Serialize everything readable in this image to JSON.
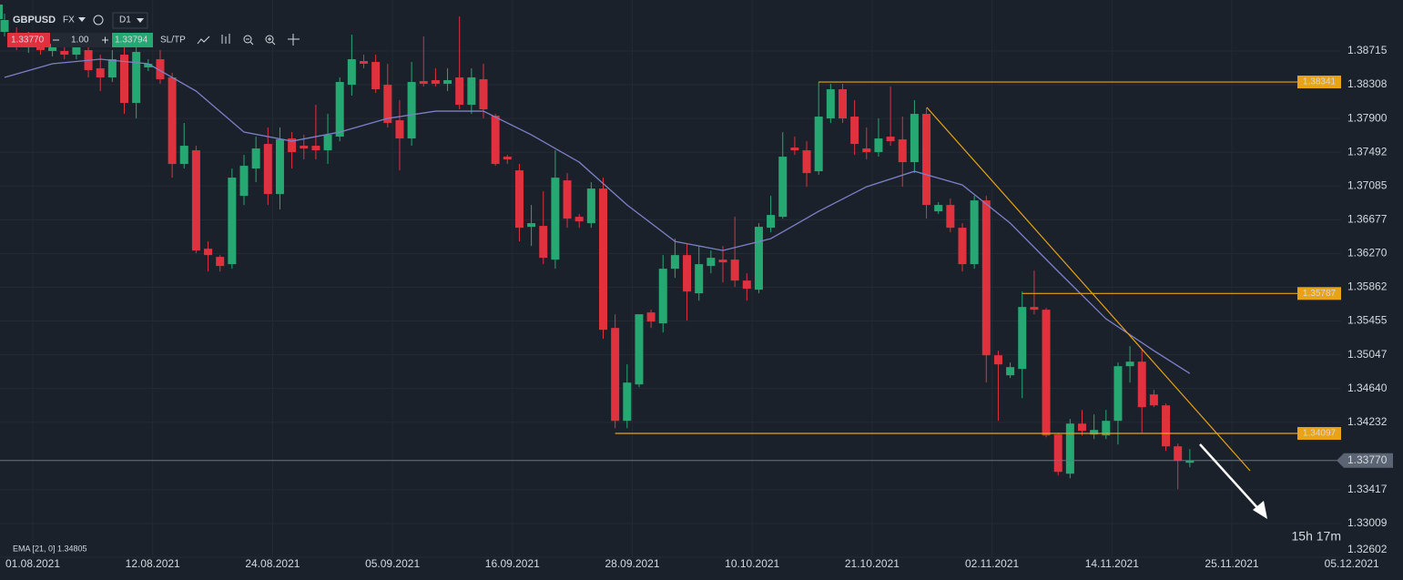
{
  "chart_data": {
    "type": "candlestick",
    "symbol": "GBPUSD",
    "market": "FX",
    "timeframe": "D1",
    "bid": {
      "value": 1.3377,
      "label": "1.33770"
    },
    "lot": "1.00",
    "ask": 1.33794,
    "sltp": "SL/TP",
    "up_color": "#26a872",
    "down_color": "#e0313e",
    "ohlc": [
      [
        1.38946,
        1.39166,
        1.38891,
        1.39089
      ],
      [
        1.38913,
        1.39001,
        1.38726,
        1.38781
      ],
      [
        1.38759,
        1.38946,
        1.38693,
        1.38869
      ],
      [
        1.38836,
        1.38913,
        1.38671,
        1.38726
      ],
      [
        1.38715,
        1.38891,
        1.38649,
        1.38803
      ],
      [
        1.38715,
        1.38781,
        1.38616,
        1.38671
      ],
      [
        1.38671,
        1.38836,
        1.38616,
        1.38759
      ],
      [
        1.38726,
        1.38781,
        1.38396,
        1.38484
      ],
      [
        1.38506,
        1.38671,
        1.38231,
        1.38396
      ],
      [
        1.38396,
        1.38726,
        1.38341,
        1.38616
      ],
      [
        1.38671,
        1.38781,
        1.37956,
        1.38088
      ],
      [
        1.38088,
        1.38781,
        1.37901,
        1.38704
      ],
      [
        1.38517,
        1.38616,
        1.38473,
        1.38561
      ],
      [
        1.38616,
        1.38726,
        1.38319,
        1.38374
      ],
      [
        1.38396,
        1.38451,
        1.37186,
        1.37351
      ],
      [
        1.37351,
        1.37846,
        1.37296,
        1.37571
      ],
      [
        1.37516,
        1.37571,
        1.36273,
        1.36306
      ],
      [
        1.36328,
        1.36416,
        1.36053,
        1.36251
      ],
      [
        1.36229,
        1.36251,
        1.36053,
        1.36119
      ],
      [
        1.36141,
        1.37296,
        1.36086,
        1.37186
      ],
      [
        1.36966,
        1.37461,
        1.36856,
        1.37329
      ],
      [
        1.37296,
        1.37681,
        1.37131,
        1.37538
      ],
      [
        1.37593,
        1.37791,
        1.36856,
        1.36988
      ],
      [
        1.36988,
        1.37791,
        1.36801,
        1.37648
      ],
      [
        1.37659,
        1.37736,
        1.37296,
        1.37494
      ],
      [
        1.37571,
        1.37703,
        1.37406,
        1.37538
      ],
      [
        1.37571,
        1.38066,
        1.37406,
        1.37516
      ],
      [
        1.37516,
        1.37956,
        1.37351,
        1.37703
      ],
      [
        1.37681,
        1.38396,
        1.37626,
        1.38341
      ],
      [
        1.38308,
        1.38913,
        1.38176,
        1.38616
      ],
      [
        1.38594,
        1.38671,
        1.38506,
        1.38561
      ],
      [
        1.38583,
        1.38671,
        1.38209,
        1.38253
      ],
      [
        1.38308,
        1.38561,
        1.37791,
        1.37846
      ],
      [
        1.37879,
        1.38121,
        1.37274,
        1.37659
      ],
      [
        1.37659,
        1.38583,
        1.37571,
        1.38341
      ],
      [
        1.38352,
        1.38891,
        1.38286,
        1.38319
      ],
      [
        1.38363,
        1.38506,
        1.38286,
        1.38319
      ],
      [
        1.38319,
        1.38506,
        1.38231,
        1.38363
      ],
      [
        1.38396,
        1.39133,
        1.38011,
        1.38066
      ],
      [
        1.38066,
        1.38506,
        1.37956,
        1.38396
      ],
      [
        1.38374,
        1.38561,
        1.37901,
        1.38011
      ],
      [
        1.37934,
        1.37956,
        1.37329,
        1.37351
      ],
      [
        1.37439,
        1.37461,
        1.37351,
        1.37406
      ],
      [
        1.37274,
        1.37351,
        1.36416,
        1.36581
      ],
      [
        1.36592,
        1.36856,
        1.36361,
        1.36636
      ],
      [
        1.36603,
        1.37021,
        1.36141,
        1.36218
      ],
      [
        1.36196,
        1.37516,
        1.36086,
        1.37186
      ],
      [
        1.37153,
        1.37241,
        1.36581,
        1.36691
      ],
      [
        1.36713,
        1.36746,
        1.36581,
        1.36658
      ],
      [
        1.36636,
        1.37131,
        1.36581,
        1.37054
      ],
      [
        1.37054,
        1.37186,
        1.35239,
        1.35349
      ],
      [
        1.35371,
        1.35536,
        1.34161,
        1.34249
      ],
      [
        1.34249,
        1.34931,
        1.34161,
        1.34711
      ],
      [
        1.34689,
        1.35536,
        1.34656,
        1.35536
      ],
      [
        1.35558,
        1.35591,
        1.35371,
        1.35448
      ],
      [
        1.35426,
        1.36251,
        1.35316,
        1.36086
      ],
      [
        1.36086,
        1.36449,
        1.35976,
        1.36251
      ],
      [
        1.36251,
        1.36383,
        1.35459,
        1.35811
      ],
      [
        1.35789,
        1.36361,
        1.35701,
        1.36141
      ],
      [
        1.36119,
        1.36306,
        1.36031,
        1.36218
      ],
      [
        1.36196,
        1.36361,
        1.35921,
        1.36163
      ],
      [
        1.36196,
        1.36713,
        1.35866,
        1.35943
      ],
      [
        1.35943,
        1.36031,
        1.35701,
        1.35844
      ],
      [
        1.35833,
        1.36636,
        1.35789,
        1.36592
      ],
      [
        1.36581,
        1.36966,
        1.36526,
        1.36735
      ],
      [
        1.36713,
        1.37736,
        1.36691,
        1.37439
      ],
      [
        1.37549,
        1.37681,
        1.37461,
        1.37516
      ],
      [
        1.37516,
        1.37626,
        1.37076,
        1.37241
      ],
      [
        1.37263,
        1.38341,
        1.37219,
        1.37923
      ],
      [
        1.37901,
        1.38319,
        1.37846,
        1.38253
      ],
      [
        1.38253,
        1.38319,
        1.37846,
        1.37901
      ],
      [
        1.37923,
        1.38121,
        1.37461,
        1.37593
      ],
      [
        1.37538,
        1.37791,
        1.37406,
        1.37494
      ],
      [
        1.37494,
        1.37901,
        1.37439,
        1.37659
      ],
      [
        1.37681,
        1.38286,
        1.37571,
        1.37626
      ],
      [
        1.37648,
        1.37923,
        1.37076,
        1.37373
      ],
      [
        1.37373,
        1.38121,
        1.37241,
        1.37956
      ],
      [
        1.37956,
        1.38033,
        1.36691,
        1.36856
      ],
      [
        1.36779,
        1.36889,
        1.36746,
        1.36856
      ],
      [
        1.36856,
        1.36933,
        1.36526,
        1.36581
      ],
      [
        1.36581,
        1.36636,
        1.36053,
        1.36141
      ],
      [
        1.36141,
        1.36966,
        1.36086,
        1.36911
      ],
      [
        1.36911,
        1.36966,
        1.34711,
        1.35041
      ],
      [
        1.35041,
        1.35096,
        1.34249,
        1.34931
      ],
      [
        1.34799,
        1.34953,
        1.34766,
        1.34898
      ],
      [
        1.34876,
        1.35811,
        1.34524,
        1.35624
      ],
      [
        1.35624,
        1.36064,
        1.35536,
        1.35591
      ],
      [
        1.35591,
        1.35613,
        1.34051,
        1.34073
      ],
      [
        1.34084,
        1.34106,
        1.33589,
        1.33633
      ],
      [
        1.33611,
        1.34271,
        1.33556,
        1.34216
      ],
      [
        1.34216,
        1.34381,
        1.34073,
        1.34128
      ],
      [
        1.34084,
        1.34326,
        1.34029,
        1.34139
      ],
      [
        1.34073,
        1.34381,
        1.34029,
        1.34249
      ],
      [
        1.34249,
        1.34953,
        1.33963,
        1.34909
      ],
      [
        1.34909,
        1.35151,
        1.34711,
        1.34964
      ],
      [
        1.34964,
        1.35118,
        1.34106,
        1.34414
      ],
      [
        1.34568,
        1.34623,
        1.34414,
        1.34436
      ],
      [
        1.34436,
        1.34458,
        1.33886,
        1.33941
      ],
      [
        1.33941,
        1.33974,
        1.33424,
        1.33765
      ],
      [
        1.33743,
        1.33908,
        1.33688,
        1.3377
      ]
    ],
    "ema": {
      "name": "EMA [21, 0] 1.34805",
      "color": "#7d80c8",
      "index": [
        0,
        4,
        8,
        12,
        16,
        20,
        24,
        28,
        32,
        36,
        40,
        44,
        48,
        52,
        56,
        60,
        64,
        68,
        72,
        76,
        80,
        84,
        88,
        92,
        96,
        99
      ],
      "values": [
        1.38396,
        1.38561,
        1.38616,
        1.38561,
        1.38231,
        1.37736,
        1.37626,
        1.37736,
        1.37901,
        1.37989,
        1.37989,
        1.37703,
        1.37373,
        1.36856,
        1.36416,
        1.36306,
        1.36449,
        1.36779,
        1.37076,
        1.37263,
        1.37098,
        1.36636,
        1.36053,
        1.35481,
        1.35096,
        1.34821
      ]
    },
    "levels": [
      {
        "value": 1.38341,
        "from": 68
      },
      {
        "value": 1.35787,
        "from": 85
      },
      {
        "value": 1.34097,
        "from": 51
      }
    ],
    "level_color": "#e8a317",
    "current_price": {
      "value": 1.3377,
      "label": "1.33770"
    },
    "ylim": [
      1.32602,
      1.39331
    ],
    "yticks": [
      1.38715,
      1.38308,
      {
        "value": 1.379,
        "label": "1.37900"
      },
      1.37492,
      1.37085,
      1.36677,
      {
        "value": 1.3627,
        "label": "1.36270"
      },
      1.35862,
      1.35455,
      1.35047,
      {
        "value": 1.3464,
        "label": "1.34640"
      },
      1.34232,
      1.33417,
      1.33009,
      1.32602
    ],
    "xticks": [
      "01.08.2021",
      "12.08.2021",
      "24.08.2021",
      "05.09.2021",
      "16.09.2021",
      "28.09.2021",
      "10.10.2021",
      "21.10.2021",
      "02.11.2021",
      "14.11.2021",
      "25.11.2021",
      "05.12.2021"
    ],
    "timer": "15h 17m"
  }
}
